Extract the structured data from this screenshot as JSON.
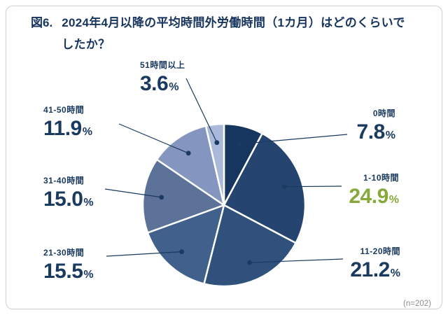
{
  "figure": {
    "number_label": "図6.",
    "title": "2024年4月以降の平均時間外労働時間（1カ月）はどのくらいでしたか？",
    "sample_size": "(n=202)"
  },
  "chart_data": {
    "type": "pie",
    "title": "2024年4月以降の平均時間外労働時間（1カ月）はどのくらいでしたか？",
    "unit": "%",
    "start_angle_deg": -90,
    "direction": "clockwise",
    "legend_position": "around-with-leader-lines",
    "label_color": "#1b3a60",
    "line_color": "#1b3a60",
    "highlight_color": "#87a93c",
    "slices": [
      {
        "label": "0時間",
        "value": 7.8,
        "display": "7.8",
        "color": "#16355f",
        "highlighted": false
      },
      {
        "label": "1-10時間",
        "value": 24.9,
        "display": "24.9",
        "color": "#254570",
        "highlighted": true
      },
      {
        "label": "11-20時間",
        "value": 21.2,
        "display": "21.2",
        "color": "#31517d",
        "highlighted": false
      },
      {
        "label": "21-30時間",
        "value": 15.5,
        "display": "15.5",
        "color": "#41608c",
        "highlighted": false
      },
      {
        "label": "31-40時間",
        "value": 15.0,
        "display": "15.0",
        "color": "#5d7299",
        "highlighted": false
      },
      {
        "label": "41-50時間",
        "value": 11.9,
        "display": "11.9",
        "color": "#8496bf",
        "highlighted": false
      },
      {
        "label": "51時間以上",
        "value": 3.6,
        "display": "3.6",
        "color": "#aab9da",
        "highlighted": false
      }
    ]
  }
}
